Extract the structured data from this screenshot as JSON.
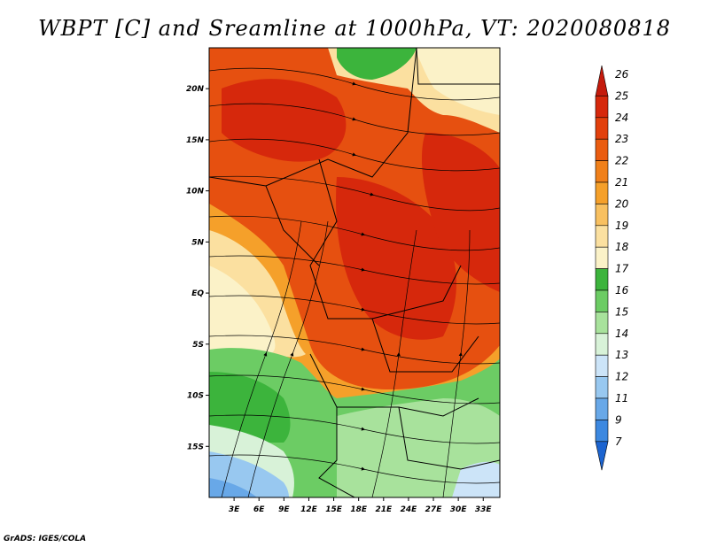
{
  "title": "WBPT [C] and Sreamline at 1000hPa, VT: 2020080818",
  "credit": "GrADS: IGES/COLA",
  "map": {
    "lon_range": [
      0,
      35
    ],
    "lat_range": [
      -20,
      24
    ],
    "lon_ticks": [
      "3E",
      "6E",
      "9E",
      "12E",
      "15E",
      "18E",
      "21E",
      "24E",
      "27E",
      "30E",
      "33E"
    ],
    "lon_tick_values": [
      3,
      6,
      9,
      12,
      15,
      18,
      21,
      24,
      27,
      30,
      33
    ],
    "lat_ticks": [
      "20N",
      "15N",
      "10N",
      "5N",
      "EQ",
      "5S",
      "10S",
      "15S"
    ],
    "lat_tick_values": [
      20,
      15,
      10,
      5,
      0,
      -5,
      -10,
      -15
    ]
  },
  "colorbar": {
    "labels": [
      "26",
      "25",
      "24",
      "23",
      "22",
      "21",
      "20",
      "19",
      "18",
      "17",
      "16",
      "15",
      "14",
      "13",
      "12",
      "11",
      "9",
      "7"
    ],
    "colors": [
      "#c41a0c",
      "#d6280c",
      "#e2400c",
      "#ea5c10",
      "#f0801a",
      "#f5a02a",
      "#f8c060",
      "#fbe0a0",
      "#fbf2c8",
      "#3cb43c",
      "#6ccc64",
      "#a8e29c",
      "#d8f2d8",
      "#cce4f8",
      "#98c8f0",
      "#68a8e8",
      "#3c88e0",
      "#1c64d0"
    ]
  }
}
